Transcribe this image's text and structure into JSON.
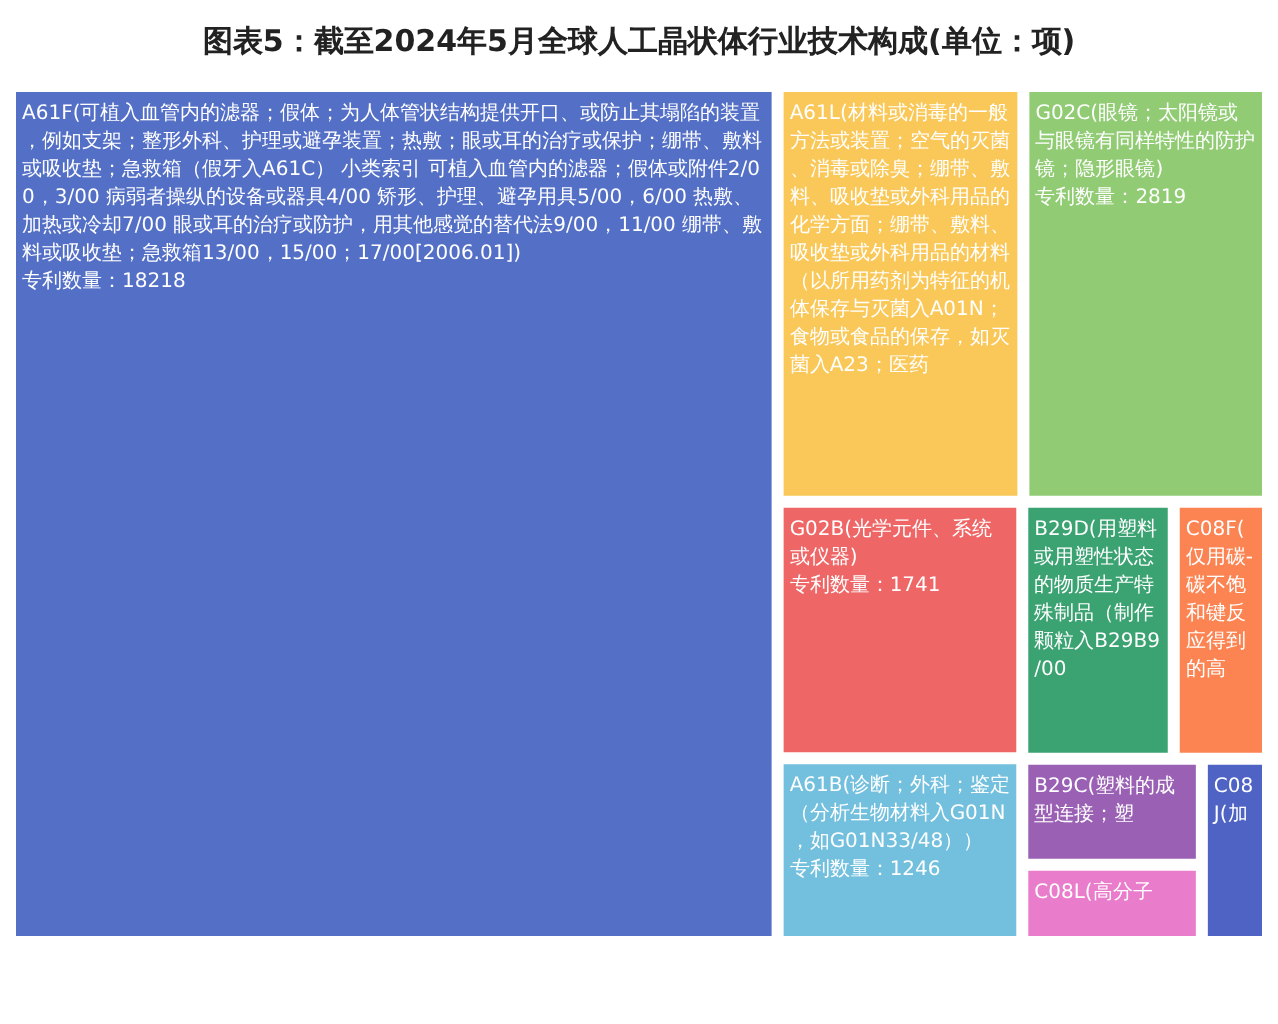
{
  "chart_data": {
    "type": "other",
    "title": "图表5：截至2024年5月全球人工晶状体行业技术构成(单位：项)",
    "categories": [
      "A61F(可植入血管内的滤器；假体；为人体管状结构提供开口、或防止其塌陷的装置，例如支架；整形外科、护理或避孕装置；热敷；眼或耳的治疗或保护；绷带、敷料或吸收垫；急救箱（假牙入A61C） 小类索引 可植入血管内的滤器；假体或附件2/00，3/00 病弱者操纵的设备或器具4/00 矫形、护理、避孕用具5/00，6/00 热敷、加热或冷却7/00 眼或耳的治疗或防护，用其他感觉的替代法9/00，11/00 绷带、敷料或吸收垫；急救箱13/00，15/00；17/00[2006.01])",
      "G02C(眼镜；太阳镜或与眼镜有同样特性的防护镜；隐形眼镜)",
      "A61L(材料或消毒的一般方法或装置；空气的灭菌、消毒或除臭；绷带、敷料、吸收垫或外科用品的化学方面；绷带、敷料、吸收垫或外科用品的材料（以所用药剂为特征的机体保存与灭菌入A01N；食物或食品的保存，如灭菌入A23；医药",
      "G02B(光学元件、系统或仪器)",
      "A61B(诊断；外科；鉴定（分析生物材料入G01N，如G01N33/48））",
      "B29D(用塑料或用塑性状态的物质生产特殊制品（制作颗粒入B29B9/00",
      "C08F(仅用碳-碳不饱和键反应得到的高",
      "B29C(塑料的成型连接；塑",
      "C08L(高分子",
      "C08J(加"
    ],
    "values": [
      18218,
      2819,
      null,
      1741,
      1246,
      null,
      null,
      null,
      null,
      null
    ],
    "value_labels": [
      "专利数量：18218",
      "专利数量：2819",
      null,
      "专利数量：1741",
      "专利数量：1246",
      null,
      null,
      null,
      null,
      null
    ],
    "colors": [
      "#5470c6",
      "#91cc75",
      "#fac858",
      "#ee6666",
      "#73c0de",
      "#3ba272",
      "#fc8452",
      "#9a60b4",
      "#ea7ccc",
      "#4f63c4"
    ]
  }
}
